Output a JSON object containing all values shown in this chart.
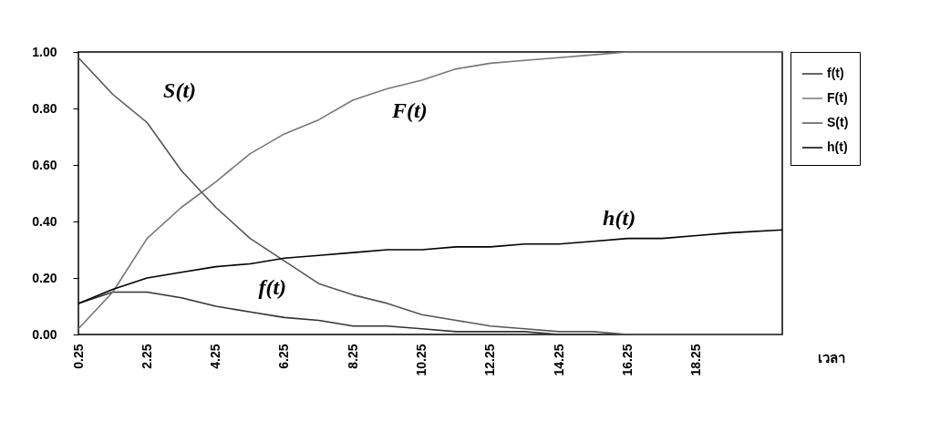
{
  "chart_data": {
    "type": "line",
    "xlabel": "เวลา",
    "x": [
      0.25,
      1.25,
      2.25,
      3.25,
      4.25,
      5.25,
      6.25,
      7.25,
      8.25,
      9.25,
      10.25,
      11.25,
      12.25,
      13.25,
      14.25,
      15.25,
      16.25,
      17.25,
      18.25,
      19.25,
      20.75
    ],
    "series": [
      {
        "name": "f(t)",
        "color": "#333333",
        "values": [
          0.11,
          0.15,
          0.15,
          0.13,
          0.1,
          0.08,
          0.06,
          0.05,
          0.03,
          0.03,
          0.02,
          0.01,
          0.01,
          0.01,
          0,
          0,
          0,
          0,
          0,
          0,
          0
        ]
      },
      {
        "name": "F(t)",
        "color": "#777777",
        "values": [
          0.02,
          0.15,
          0.34,
          0.45,
          0.54,
          0.64,
          0.71,
          0.76,
          0.83,
          0.87,
          0.9,
          0.94,
          0.96,
          0.97,
          0.98,
          0.99,
          1,
          1,
          1,
          1,
          1
        ]
      },
      {
        "name": "S(t)",
        "color": "#555555",
        "values": [
          0.98,
          0.85,
          0.75,
          0.58,
          0.45,
          0.34,
          0.26,
          0.18,
          0.14,
          0.11,
          0.07,
          0.05,
          0.03,
          0.02,
          0.01,
          0.01,
          0,
          0,
          0,
          0,
          0
        ]
      },
      {
        "name": "h(t)",
        "color": "#000000",
        "values": [
          0.11,
          0.16,
          0.2,
          0.22,
          0.24,
          0.25,
          0.27,
          0.28,
          0.29,
          0.3,
          0.3,
          0.31,
          0.31,
          0.32,
          0.32,
          0.33,
          0.34,
          0.34,
          0.35,
          0.36,
          0.37
        ]
      }
    ],
    "xlim": [
      0.25,
      20.75
    ],
    "xticks": [
      0.25,
      2.25,
      4.25,
      6.25,
      8.25,
      10.25,
      12.25,
      14.25,
      16.25,
      18.25
    ],
    "ylim": [
      0,
      1
    ],
    "yticks": [
      {
        "value": 0,
        "label": "0.00"
      },
      {
        "value": 0.2,
        "label": "0.20"
      },
      {
        "value": 0.4,
        "label": "0.40"
      },
      {
        "value": 0.6,
        "label": "0.60"
      },
      {
        "value": 0.8,
        "label": "0.80"
      },
      {
        "value": 1,
        "label": "1.00"
      }
    ],
    "annotations": [
      "S(t)",
      "F(t)",
      "h(t)",
      "f(t)"
    ],
    "grid": false,
    "legend": "right",
    "line_style": "solid",
    "marker": "none"
  }
}
